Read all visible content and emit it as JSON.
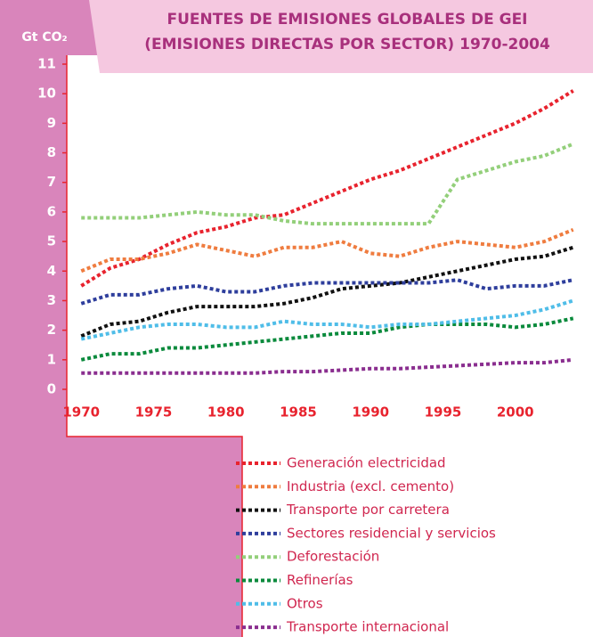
{
  "chart_data": {
    "type": "line",
    "title": "FUENTES DE EMISIONES GLOBALES DE GEI",
    "subtitle": "(EMISIONES DIRECTAS POR SECTOR) 1970-2004",
    "y_label": "Gt CO₂",
    "x": [
      1970,
      1972,
      1974,
      1976,
      1978,
      1980,
      1982,
      1984,
      1986,
      1988,
      1990,
      1992,
      1994,
      1996,
      1998,
      2000,
      2002,
      2004
    ],
    "xlim": [
      1969,
      2005
    ],
    "xticks": [
      1970,
      1975,
      1980,
      1985,
      1990,
      1995,
      2000
    ],
    "ylim": [
      0,
      11
    ],
    "yticks": [
      0,
      1,
      2,
      3,
      4,
      5,
      6,
      7,
      8,
      9,
      10,
      11
    ],
    "series": [
      {
        "name": "Generación electricidad",
        "color": "#e8232e",
        "values": [
          3.5,
          4.1,
          4.4,
          4.9,
          5.3,
          5.5,
          5.8,
          5.9,
          6.3,
          6.7,
          7.1,
          7.4,
          7.8,
          8.2,
          8.6,
          9.0,
          9.5,
          10.1
        ]
      },
      {
        "name": "Industria (excl. cemento)",
        "color": "#ef7c3f",
        "values": [
          4.0,
          4.4,
          4.4,
          4.6,
          4.9,
          4.7,
          4.5,
          4.8,
          4.8,
          5.0,
          4.6,
          4.5,
          4.8,
          5.0,
          4.9,
          4.8,
          5.0,
          5.4
        ]
      },
      {
        "name": "Transporte por carretera",
        "color": "#111111",
        "values": [
          1.8,
          2.2,
          2.3,
          2.6,
          2.8,
          2.8,
          2.8,
          2.9,
          3.1,
          3.4,
          3.5,
          3.6,
          3.8,
          4.0,
          4.2,
          4.4,
          4.5,
          4.8
        ]
      },
      {
        "name": "Sectores residencial y servicios",
        "color": "#2e3e9c",
        "values": [
          2.9,
          3.2,
          3.2,
          3.4,
          3.5,
          3.3,
          3.3,
          3.5,
          3.6,
          3.6,
          3.6,
          3.6,
          3.6,
          3.7,
          3.4,
          3.5,
          3.5,
          3.7
        ]
      },
      {
        "name": "Deforestación",
        "color": "#93cf7a",
        "values": [
          5.8,
          5.8,
          5.8,
          5.9,
          6.0,
          5.9,
          5.9,
          5.7,
          5.6,
          5.6,
          5.6,
          5.6,
          5.6,
          7.1,
          7.4,
          7.7,
          7.9,
          8.3
        ]
      },
      {
        "name": "Refinerías",
        "color": "#0a8a3c",
        "values": [
          1.0,
          1.2,
          1.2,
          1.4,
          1.4,
          1.5,
          1.6,
          1.7,
          1.8,
          1.9,
          1.9,
          2.1,
          2.2,
          2.2,
          2.2,
          2.1,
          2.2,
          2.4
        ]
      },
      {
        "name": "Otros",
        "color": "#4fbde8",
        "values": [
          1.7,
          1.9,
          2.1,
          2.2,
          2.2,
          2.1,
          2.1,
          2.3,
          2.2,
          2.2,
          2.1,
          2.2,
          2.2,
          2.3,
          2.4,
          2.5,
          2.7,
          3.0
        ]
      },
      {
        "name": "Transporte internacional",
        "color": "#8a2e8f",
        "values": [
          0.55,
          0.55,
          0.55,
          0.55,
          0.55,
          0.55,
          0.55,
          0.6,
          0.6,
          0.65,
          0.7,
          0.7,
          0.75,
          0.8,
          0.85,
          0.9,
          0.9,
          1.0
        ]
      }
    ]
  }
}
